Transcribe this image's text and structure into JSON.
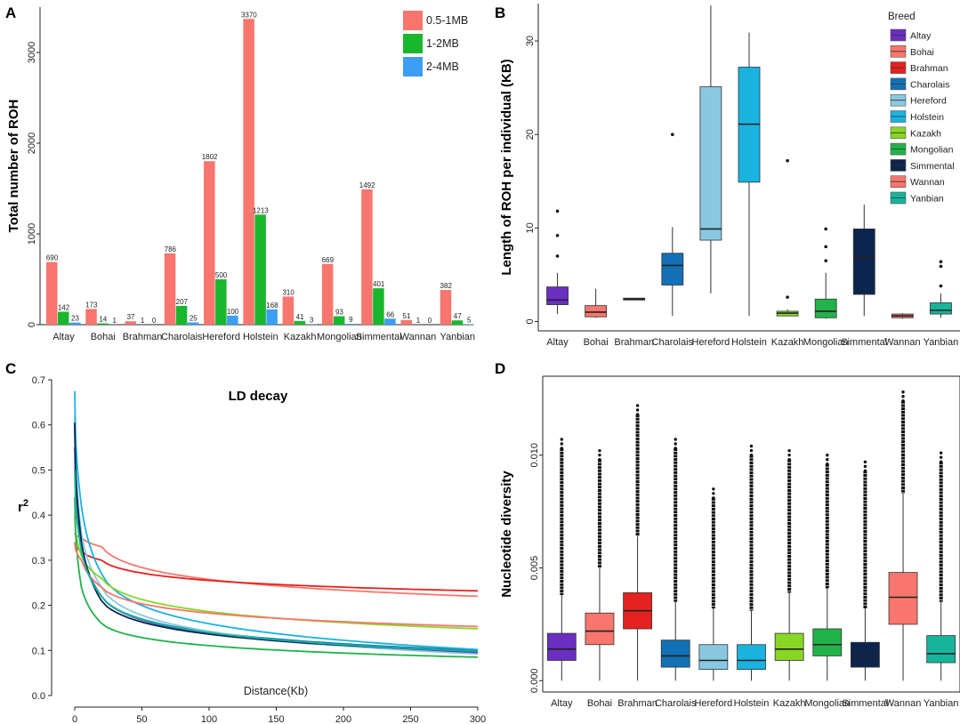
{
  "panels": {
    "A": "A",
    "B": "B",
    "C": "C",
    "D": "D"
  },
  "chart_data": [
    {
      "type": "bar",
      "panel": "A",
      "ylabel": "Total number of ROH",
      "ylim": [
        0,
        3500
      ],
      "yticks": [
        0,
        1000,
        2000,
        3000
      ],
      "categories": [
        "Altay",
        "Bohai",
        "Brahman",
        "Charolais",
        "Hereford",
        "Holstein",
        "Kazakh",
        "Mongolian",
        "Simmental",
        "Wannan",
        "Yanbian"
      ],
      "series": [
        {
          "name": "0.5-1MB",
          "color": "#f8766d",
          "values": [
            690,
            173,
            37,
            786,
            1802,
            3370,
            310,
            669,
            1492,
            51,
            382
          ]
        },
        {
          "name": "1-2MB",
          "color": "#19b72e",
          "values": [
            142,
            14,
            1,
            207,
            500,
            1213,
            41,
            93,
            401,
            1,
            47
          ]
        },
        {
          "name": "2-4MB",
          "color": "#3c9ef5",
          "values": [
            23,
            1,
            0,
            25,
            100,
            168,
            3,
            9,
            66,
            0,
            5
          ]
        }
      ]
    },
    {
      "type": "box",
      "panel": "B",
      "ylabel": "Length of ROH per individual (KB)",
      "ylim": [
        -1,
        34
      ],
      "yticks": [
        0,
        10,
        20,
        30
      ],
      "legend_title": "Breed",
      "categories": [
        "Altay",
        "Bohai",
        "Brahman",
        "Charolais",
        "Hereford",
        "Holstein",
        "Kazakh",
        "Mongolian",
        "Simmental",
        "Wannan",
        "Yanbian"
      ],
      "colors": [
        "#6a2ec0",
        "#f8766d",
        "#e4221f",
        "#1271b4",
        "#89c8e0",
        "#19b3e0",
        "#89d624",
        "#22b24a",
        "#0c254d",
        "#f8766d",
        "#17b49c"
      ],
      "boxes": [
        {
          "min": 0.8,
          "q1": 1.8,
          "median": 2.3,
          "q3": 3.7,
          "max": 5.2,
          "outliers": [
            7.0,
            9.2,
            11.8
          ]
        },
        {
          "min": 0.4,
          "q1": 0.5,
          "median": 1.0,
          "q3": 1.7,
          "max": 3.5,
          "outliers": []
        },
        {
          "min": 2.3,
          "q1": 2.3,
          "median": 2.4,
          "q3": 2.5,
          "max": 2.5,
          "outliers": []
        },
        {
          "min": 0.6,
          "q1": 3.9,
          "median": 6.0,
          "q3": 7.3,
          "max": 10.1,
          "outliers": [
            20.0
          ]
        },
        {
          "min": 3.0,
          "q1": 8.7,
          "median": 9.9,
          "q3": 25.1,
          "max": 33.8,
          "outliers": []
        },
        {
          "min": 0.6,
          "q1": 14.9,
          "median": 21.1,
          "q3": 27.2,
          "max": 30.9,
          "outliers": []
        },
        {
          "min": 0.6,
          "q1": 0.6,
          "median": 0.9,
          "q3": 1.1,
          "max": 1.3,
          "outliers": [
            2.6,
            17.2
          ]
        },
        {
          "min": 0.3,
          "q1": 0.4,
          "median": 1.1,
          "q3": 2.4,
          "max": 5.2,
          "outliers": [
            6.5,
            8.0,
            9.9
          ]
        },
        {
          "min": 0.6,
          "q1": 2.9,
          "median": 6.9,
          "q3": 9.9,
          "max": 12.5,
          "outliers": []
        },
        {
          "min": 0.3,
          "q1": 0.4,
          "median": 0.6,
          "q3": 0.8,
          "max": 0.9,
          "outliers": []
        },
        {
          "min": 0.4,
          "q1": 0.8,
          "median": 1.2,
          "q3": 2.0,
          "max": 3.0,
          "outliers": [
            3.8,
            5.9,
            6.4
          ]
        }
      ]
    },
    {
      "type": "line",
      "panel": "C",
      "title": "LD decay",
      "xlabel": "Distance(Kb)",
      "ylabel": "r2",
      "xlim": [
        0,
        300
      ],
      "ylim": [
        0,
        0.7
      ],
      "xticks": [
        0,
        50,
        100,
        150,
        200,
        250,
        300
      ],
      "yticks": [
        0.0,
        0.1,
        0.2,
        0.3,
        0.4,
        0.5,
        0.6,
        0.7
      ],
      "series": [
        {
          "name": "Altay",
          "color": "#6a2ec0",
          "start": 0.55,
          "at5": 0.33,
          "at20": 0.22,
          "at300": 0.095,
          "a": 1
        },
        {
          "name": "Bohai",
          "color": "#f8766d",
          "start": 0.36,
          "at5": 0.35,
          "at20": 0.33,
          "at300": 0.22,
          "a": 1
        },
        {
          "name": "Brahman",
          "color": "#e4221f",
          "start": 0.34,
          "at5": 0.32,
          "at20": 0.3,
          "at300": 0.232,
          "a": 1
        },
        {
          "name": "Charolais",
          "color": "#1271b4",
          "start": 0.6,
          "at5": 0.33,
          "at20": 0.22,
          "at300": 0.1,
          "a": 1
        },
        {
          "name": "Hereford",
          "color": "#89c8e0",
          "start": 0.62,
          "at5": 0.36,
          "at20": 0.24,
          "at300": 0.092,
          "a": 1
        },
        {
          "name": "Holstein",
          "color": "#19b3e0",
          "start": 0.675,
          "at5": 0.42,
          "at20": 0.27,
          "at300": 0.102,
          "a": 1
        },
        {
          "name": "Kazakh",
          "color": "#89d624",
          "start": 0.4,
          "at5": 0.31,
          "at20": 0.26,
          "at300": 0.148,
          "a": 1
        },
        {
          "name": "Mongolian",
          "color": "#22b24a",
          "start": 0.44,
          "at5": 0.24,
          "at20": 0.16,
          "at300": 0.085,
          "a": 1
        },
        {
          "name": "Simmental",
          "color": "#0c254d",
          "start": 0.605,
          "at5": 0.34,
          "at20": 0.21,
          "at300": 0.098,
          "a": 1
        },
        {
          "name": "Wannan",
          "color": "#f8766d",
          "start": 0.34,
          "at5": 0.3,
          "at20": 0.24,
          "at300": 0.153,
          "a": 1
        },
        {
          "name": "Yanbian",
          "color": "#17b49c",
          "start": 0.5,
          "at5": 0.32,
          "at20": 0.22,
          "at300": 0.098,
          "a": 1
        }
      ]
    },
    {
      "type": "box",
      "panel": "D",
      "ylabel": "Nucleotide diversity",
      "ylim": [
        -0.0005,
        0.0135
      ],
      "yticks": [
        0.0,
        0.005,
        0.01
      ],
      "ytick_labels": [
        "0.000",
        "0.005",
        "0.010"
      ],
      "categories": [
        "Altay",
        "Bohai",
        "Brahman",
        "Charolais",
        "Hereford",
        "Holstein",
        "Kazakh",
        "Mongolian",
        "Simmental",
        "Wannan",
        "Yanbian"
      ],
      "colors": [
        "#6a2ec0",
        "#f8766d",
        "#e4221f",
        "#1271b4",
        "#89c8e0",
        "#19b3e0",
        "#89d624",
        "#22b24a",
        "#0c254d",
        "#f8766d",
        "#17b49c"
      ],
      "boxes": [
        {
          "min": 0.0,
          "q1": 0.0009,
          "median": 0.0014,
          "q3": 0.0021,
          "max": 0.0038,
          "outmax": 0.0107
        },
        {
          "min": 0.0,
          "q1": 0.0016,
          "median": 0.0022,
          "q3": 0.003,
          "max": 0.005,
          "outmax": 0.0102
        },
        {
          "min": 0.0,
          "q1": 0.0023,
          "median": 0.0031,
          "q3": 0.0039,
          "max": 0.0064,
          "outmax": 0.0122
        },
        {
          "min": 0.0,
          "q1": 0.0006,
          "median": 0.0011,
          "q3": 0.0018,
          "max": 0.0035,
          "outmax": 0.0107
        },
        {
          "min": 0.0,
          "q1": 0.0005,
          "median": 0.0009,
          "q3": 0.0016,
          "max": 0.0032,
          "outmax": 0.0085
        },
        {
          "min": 0.0,
          "q1": 0.0005,
          "median": 0.0009,
          "q3": 0.0016,
          "max": 0.0031,
          "outmax": 0.0104
        },
        {
          "min": 0.0,
          "q1": 0.0009,
          "median": 0.0014,
          "q3": 0.0021,
          "max": 0.0039,
          "outmax": 0.0102
        },
        {
          "min": 0.0,
          "q1": 0.0011,
          "median": 0.0016,
          "q3": 0.0023,
          "max": 0.0041,
          "outmax": 0.01
        },
        {
          "min": 0.0,
          "q1": 0.0006,
          "median": 0.0011,
          "q3": 0.0017,
          "max": 0.0032,
          "outmax": 0.0097
        },
        {
          "min": 0.0,
          "q1": 0.0025,
          "median": 0.0037,
          "q3": 0.0048,
          "max": 0.0083,
          "outmax": 0.0128
        },
        {
          "min": 0.0,
          "q1": 0.0008,
          "median": 0.0012,
          "q3": 0.002,
          "max": 0.0035,
          "outmax": 0.0101
        }
      ]
    }
  ]
}
